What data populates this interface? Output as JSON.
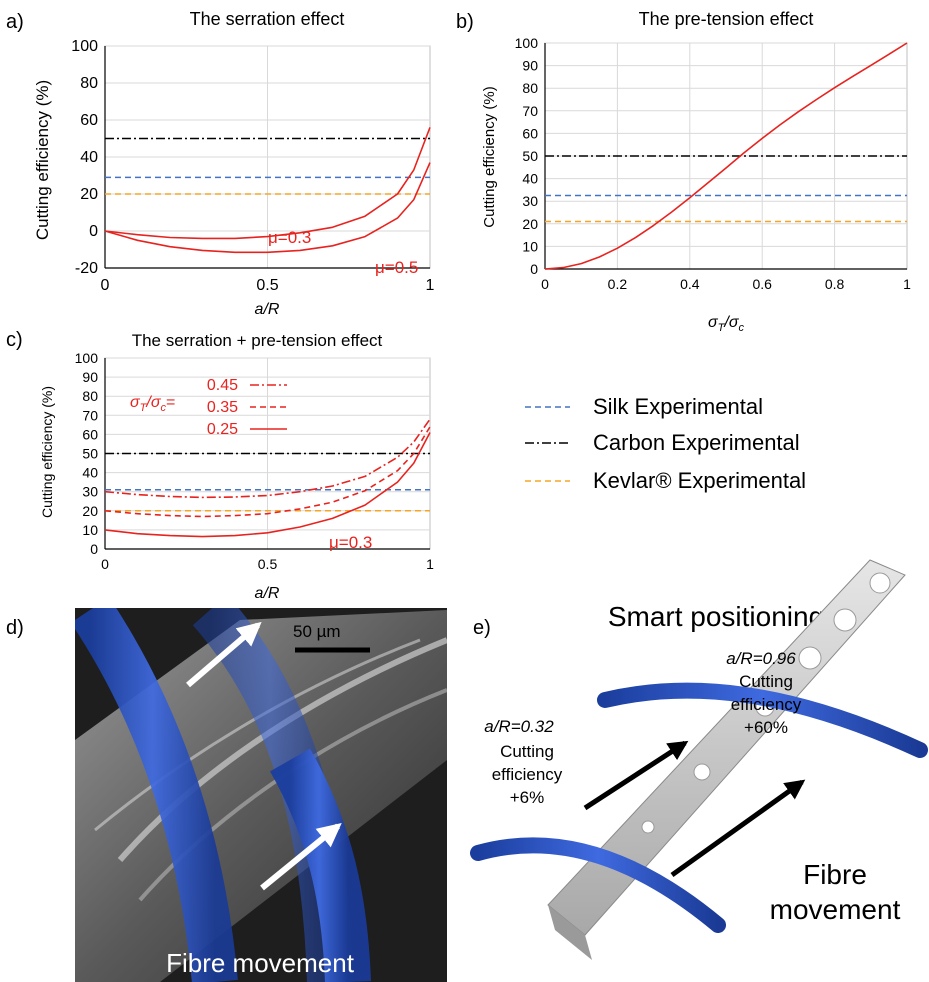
{
  "panels": {
    "a": {
      "letter": "a)",
      "title": "The serration effect"
    },
    "b": {
      "letter": "b)",
      "title": "The pre-tension effect"
    },
    "c": {
      "letter": "c)",
      "title": "The serration + pre-tension effect"
    },
    "d": {
      "letter": "d)",
      "scale_bar": "50 µm",
      "caption": "Fibre movement"
    },
    "e": {
      "letter": "e)",
      "title": "Smart positioning",
      "left_ratio": "a/R=0.32",
      "left_eff_1": "Cutting",
      "left_eff_2": "efficiency",
      "left_eff_3": "+6%",
      "right_ratio": "a/R=0.96",
      "right_eff_1": "Cutting",
      "right_eff_2": "efficiency",
      "right_eff_3": "+60%",
      "movement_1": "Fibre",
      "movement_2": "movement"
    }
  },
  "legend": {
    "entries": [
      {
        "name": "Silk Experimental",
        "color": "#4472c4",
        "dash": "dash"
      },
      {
        "name": "Carbon Experimental",
        "color": "#000000",
        "dash": "dash-dot"
      },
      {
        "name": "Kevlar® Experimental",
        "color": "#f5a623",
        "dash": "dash"
      }
    ]
  },
  "colors": {
    "curve": "#e8231f",
    "grid": "#d9d9d9",
    "fibre": "#2a55c8",
    "silk": "#4472c4",
    "carbon": "#000000",
    "kevlar": "#f5a623"
  },
  "chart_data": [
    {
      "panel": "a",
      "type": "line",
      "title": "The serration effect",
      "xlabel": "a/R",
      "ylabel": "Cutting efficiency (%)",
      "xlim": [
        0,
        1
      ],
      "ylim": [
        -20,
        100
      ],
      "xticks": [
        "0",
        "0.5",
        "1"
      ],
      "yticks": [
        "-20",
        "0",
        "20",
        "40",
        "60",
        "80",
        "100"
      ],
      "grid": true,
      "series": [
        {
          "name": "μ=0.3",
          "x": [
            0,
            0.1,
            0.2,
            0.3,
            0.4,
            0.5,
            0.6,
            0.7,
            0.8,
            0.9,
            0.95,
            1.0
          ],
          "y": [
            0,
            -2,
            -3.5,
            -4,
            -4,
            -3,
            -1,
            2,
            8,
            20,
            33,
            56
          ]
        },
        {
          "name": "μ=0.5",
          "x": [
            0,
            0.1,
            0.2,
            0.3,
            0.4,
            0.5,
            0.6,
            0.7,
            0.8,
            0.9,
            0.95,
            1.0
          ],
          "y": [
            0,
            -5,
            -8.5,
            -10.5,
            -11.5,
            -11.5,
            -10.5,
            -8,
            -3,
            7,
            17,
            37
          ]
        }
      ],
      "reference_lines": [
        {
          "series": "Carbon Experimental",
          "y": 50
        },
        {
          "series": "Silk Experimental",
          "y": 29
        },
        {
          "series": "Kevlar® Experimental",
          "y": 20
        }
      ],
      "annotations": [
        "μ=0.3",
        "μ=0.5"
      ]
    },
    {
      "panel": "b",
      "type": "line",
      "title": "The pre-tension effect",
      "xlabel": "σT/σc",
      "ylabel": "Cutting efficiency (%)",
      "xlim": [
        0,
        1
      ],
      "ylim": [
        0,
        100
      ],
      "xticks": [
        "0",
        "0.2",
        "0.4",
        "0.6",
        "0.8",
        "1"
      ],
      "yticks": [
        "0",
        "10",
        "20",
        "30",
        "40",
        "50",
        "60",
        "70",
        "80",
        "90",
        "100"
      ],
      "grid": true,
      "series": [
        {
          "x": [
            0,
            0.05,
            0.1,
            0.15,
            0.2,
            0.25,
            0.3,
            0.35,
            0.4,
            0.45,
            0.5,
            0.55,
            0.6,
            0.65,
            0.7,
            0.75,
            0.8,
            0.85,
            0.9,
            0.95,
            1.0
          ],
          "y": [
            0,
            0.6,
            2.4,
            5.3,
            9.2,
            13.9,
            19.3,
            25.2,
            31.5,
            38.1,
            44.7,
            51.4,
            57.8,
            63.9,
            69.6,
            75.0,
            80.2,
            85.2,
            90.1,
            95.0,
            100
          ]
        }
      ],
      "reference_lines": [
        {
          "series": "Carbon Experimental",
          "y": 50
        },
        {
          "series": "Silk Experimental",
          "y": 32.5
        },
        {
          "series": "Kevlar® Experimental",
          "y": 21
        }
      ]
    },
    {
      "panel": "c",
      "type": "line",
      "title": "The serration + pre-tension effect",
      "xlabel": "a/R",
      "ylabel": "Cutting efficiency (%)",
      "xlim": [
        0,
        1
      ],
      "ylim": [
        0,
        100
      ],
      "xticks": [
        "0",
        "0.5",
        "1"
      ],
      "yticks": [
        "0",
        "10",
        "20",
        "30",
        "40",
        "50",
        "60",
        "70",
        "80",
        "90",
        "100"
      ],
      "grid": true,
      "series": [
        {
          "name": "0.45",
          "dash": "dash-dot",
          "x": [
            0,
            0.1,
            0.2,
            0.3,
            0.4,
            0.5,
            0.6,
            0.7,
            0.8,
            0.9,
            0.95,
            1.0
          ],
          "y": [
            30,
            28.5,
            27.5,
            27,
            27.2,
            28,
            30,
            33,
            38,
            48,
            56,
            68
          ]
        },
        {
          "name": "0.35",
          "dash": "dash",
          "x": [
            0,
            0.1,
            0.2,
            0.3,
            0.4,
            0.5,
            0.6,
            0.7,
            0.8,
            0.9,
            0.95,
            1.0
          ],
          "y": [
            20,
            18.5,
            17.5,
            17,
            17.5,
            18.5,
            21,
            24.5,
            30.5,
            41,
            50,
            64
          ]
        },
        {
          "name": "0.25",
          "dash": "solid",
          "x": [
            0,
            0.1,
            0.2,
            0.3,
            0.4,
            0.5,
            0.6,
            0.7,
            0.8,
            0.9,
            0.95,
            1.0
          ],
          "y": [
            10,
            8,
            7,
            6.5,
            7,
            8.5,
            11.5,
            16,
            23,
            35,
            45,
            61
          ]
        }
      ],
      "reference_lines": [
        {
          "series": "Carbon Experimental",
          "y": 50
        },
        {
          "series": "Silk Experimental",
          "y": 31
        },
        {
          "series": "Kevlar® Experimental",
          "y": 20
        }
      ],
      "legend_prefix": "σT/σc=",
      "annotations": [
        "μ=0.3"
      ]
    }
  ]
}
